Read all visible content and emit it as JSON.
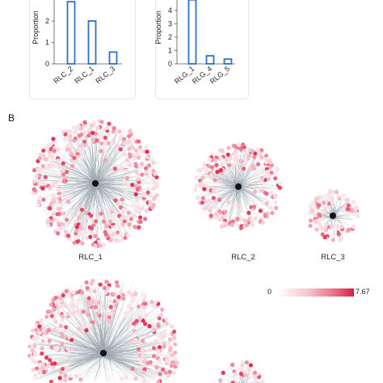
{
  "panel_b_label": "B",
  "panel_a": {
    "charts": [
      {
        "type": "bar",
        "ylabel": "Proportion",
        "categories": [
          "RLC_2",
          "RLC_1",
          "RLC_3"
        ],
        "values": [
          2.9,
          2.0,
          0.55
        ],
        "ylim": [
          0,
          3
        ],
        "yticks": [
          "0",
          "1",
          "2"
        ],
        "bar_color": "#2f6fc6"
      },
      {
        "type": "bar",
        "ylabel": "Proportion",
        "categories": [
          "RLG_1",
          "RLG_4",
          "RLG_5"
        ],
        "values": [
          4.8,
          0.6,
          0.35
        ],
        "ylim": [
          0,
          5
        ],
        "yticks": [
          "0",
          "1",
          "2",
          "3",
          "4"
        ],
        "bar_color": "#2f6fc6"
      }
    ]
  },
  "networks": {
    "labels": [
      "RLC_1",
      "RLC_2",
      "RLC_3"
    ],
    "node_low_color": "#fbe3ea",
    "node_high_color": "#e0284a",
    "hub_color": "#111111"
  },
  "legend": {
    "min": "0",
    "max": "7.67"
  }
}
